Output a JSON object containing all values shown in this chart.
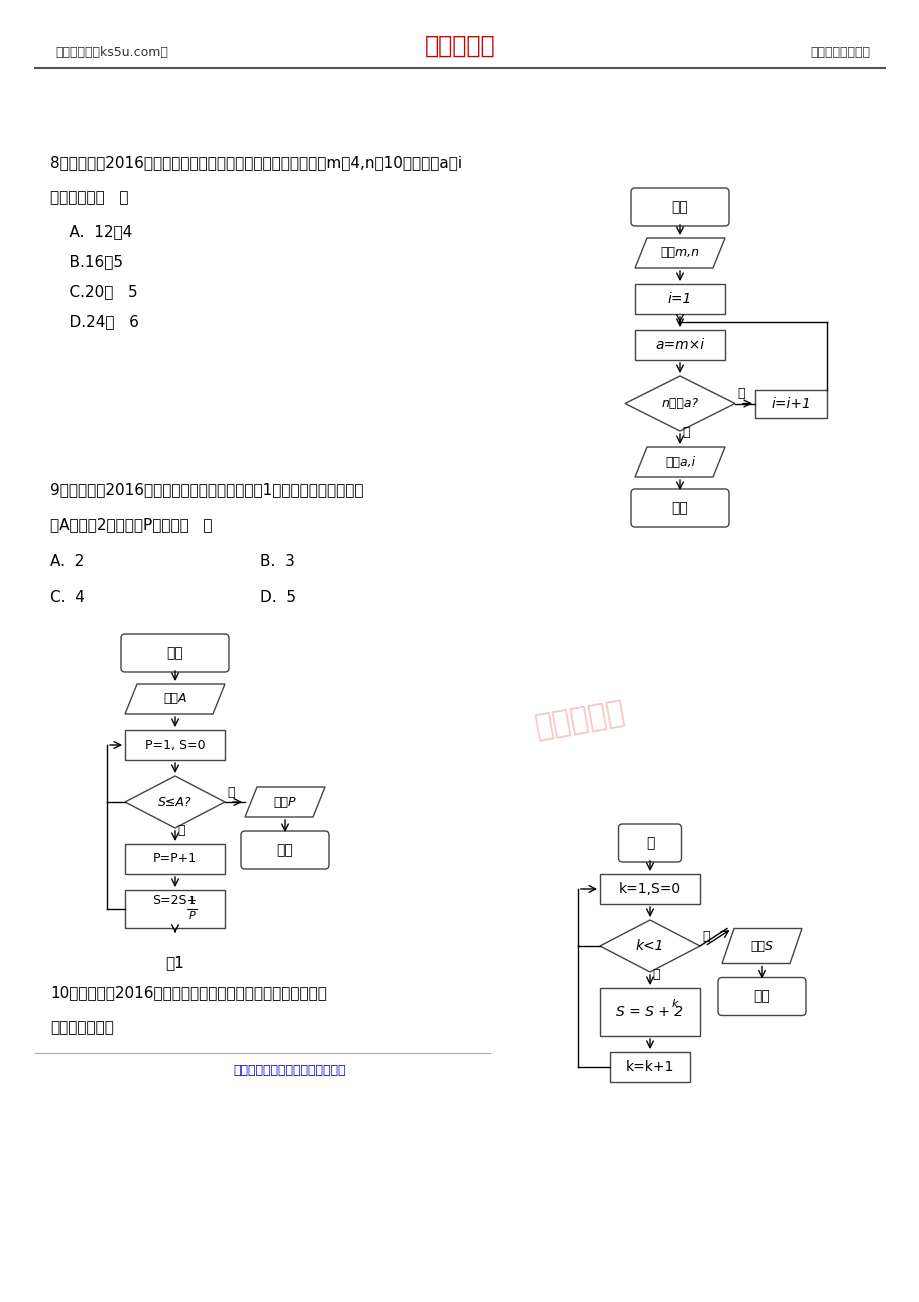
{
  "bg_color": "#ffffff",
  "header_left": "高考资源网（ks5u.com）",
  "header_center": "高考资源网",
  "header_right": "您身边的高考专家",
  "header_center_color": "#cc0000",
  "q8_line1": "8、（清远市2016届高三上学期期末）如图程序框图中，若输入m＝4,n＝10，则输出a，i",
  "q8_line2": "的值分别是（   ）",
  "q8_a": "    A.  12，4",
  "q8_b": "    B.16，5",
  "q8_c": "    C.20，   5",
  "q8_d": "    D.24，   6",
  "q9_line1": "9、（汕头市2016届高三上学期期末）执行如图1所示的程序框图，若输",
  "q9_line2": "入A的值为2，则输出P的值为（   ）",
  "q9_a": "A.  2",
  "q9_b": "B.  3",
  "q9_c": "C.  4",
  "q9_d": "D.  5",
  "q10_line1": "10、（汕尾市2016届高三上学期调研）如图，该程序运行后输",
  "q10_line2": "出的结果是（）",
  "footer": "高考资源网版权所有，侵权必究！",
  "footer_color": "#0000cc",
  "watermark": "高考资源网",
  "fig1_label": "图1"
}
